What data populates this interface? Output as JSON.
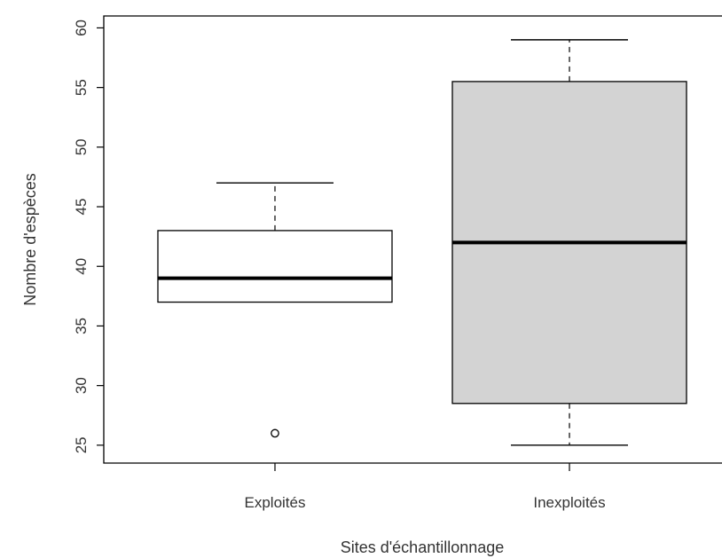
{
  "chart_data": {
    "type": "boxplot",
    "xlabel": "Sites d'échantillonnage",
    "ylabel": "Nombre d'espèces",
    "ylim": [
      23.5,
      61
    ],
    "yticks": [
      25,
      30,
      35,
      40,
      45,
      50,
      55,
      60
    ],
    "grid": false,
    "legend": "none",
    "categories": [
      "Exploités",
      "Inexploités"
    ],
    "boxes": [
      {
        "category": "Exploités",
        "whisker_low": 37,
        "q1": 37,
        "median": 39,
        "q3": 43,
        "whisker_high": 47,
        "outliers": [
          26
        ],
        "fill": "#ffffff"
      },
      {
        "category": "Inexploités",
        "whisker_low": 25,
        "q1": 28.5,
        "median": 42,
        "q3": 55.5,
        "whisker_high": 59,
        "outliers": [],
        "fill": "#d3d3d3"
      }
    ]
  }
}
